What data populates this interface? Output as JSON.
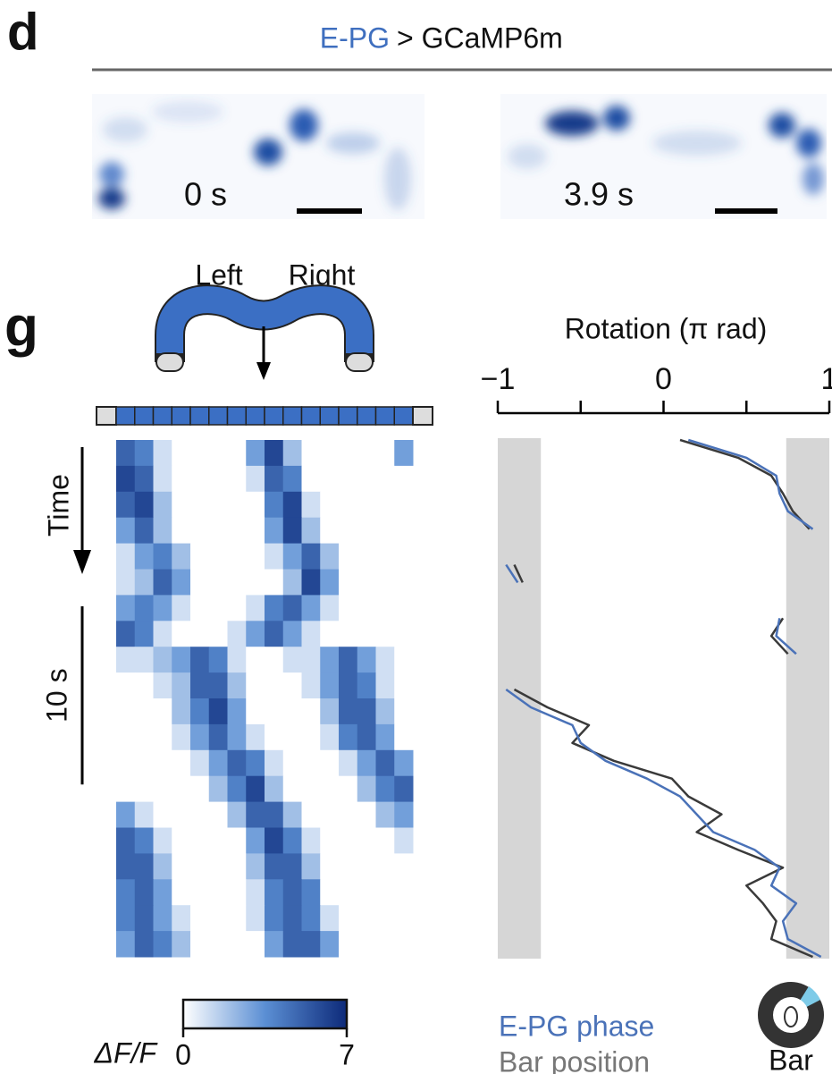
{
  "panel_d": {
    "letter": "d",
    "title_blue": "E-PG",
    "title_rest": "> GCaMP6m",
    "frames": [
      {
        "label": "0 s"
      },
      {
        "label": "3.9 s"
      }
    ]
  },
  "panel_g": {
    "letter": "g",
    "left_label": "Left",
    "right_label": "Right",
    "time_label": "Time",
    "time_scalebar": {
      "value": 10,
      "label": "10 s"
    },
    "heatmap": {
      "time_range": [
        0,
        29
      ],
      "clim": [
        0,
        7
      ],
      "colorbar_label": "ΔF/F",
      "colorbar_ticks": [
        0,
        7
      ],
      "rows": [
        [
          5,
          4,
          1,
          0,
          0,
          0,
          0,
          3,
          6,
          2,
          0,
          0,
          0,
          0,
          0,
          3
        ],
        [
          6,
          5,
          1,
          0,
          0,
          0,
          0,
          1,
          5,
          4,
          0,
          0,
          0,
          0,
          0,
          0
        ],
        [
          5,
          6,
          2,
          0,
          0,
          0,
          0,
          0,
          4,
          6,
          1,
          0,
          0,
          0,
          0,
          0
        ],
        [
          3,
          5,
          2,
          0,
          0,
          0,
          0,
          0,
          3,
          6,
          2,
          0,
          0,
          0,
          0,
          0
        ],
        [
          1,
          3,
          4,
          2,
          0,
          0,
          0,
          0,
          1,
          3,
          5,
          2,
          0,
          0,
          0,
          0
        ],
        [
          1,
          2,
          5,
          3,
          0,
          0,
          0,
          0,
          0,
          2,
          6,
          3,
          0,
          0,
          0,
          0
        ],
        [
          3,
          4,
          3,
          1,
          0,
          0,
          0,
          1,
          4,
          5,
          3,
          1,
          0,
          0,
          0,
          0
        ],
        [
          5,
          4,
          1,
          0,
          0,
          0,
          1,
          3,
          5,
          3,
          1,
          0,
          0,
          0,
          0,
          0
        ],
        [
          1,
          1,
          2,
          3,
          5,
          4,
          1,
          0,
          0,
          1,
          1,
          3,
          5,
          3,
          1,
          0
        ],
        [
          0,
          0,
          1,
          2,
          5,
          5,
          2,
          0,
          0,
          0,
          1,
          3,
          5,
          4,
          1,
          0
        ],
        [
          0,
          0,
          0,
          2,
          4,
          6,
          3,
          0,
          0,
          0,
          0,
          2,
          5,
          5,
          2,
          0
        ],
        [
          0,
          0,
          0,
          1,
          3,
          5,
          3,
          1,
          0,
          0,
          0,
          1,
          4,
          5,
          3,
          0
        ],
        [
          0,
          0,
          0,
          0,
          1,
          3,
          5,
          4,
          1,
          0,
          0,
          0,
          1,
          3,
          5,
          3
        ],
        [
          0,
          0,
          0,
          0,
          0,
          2,
          4,
          6,
          2,
          0,
          0,
          0,
          0,
          2,
          4,
          5
        ],
        [
          3,
          1,
          0,
          0,
          0,
          0,
          2,
          5,
          5,
          2,
          0,
          0,
          0,
          0,
          2,
          3
        ],
        [
          5,
          4,
          1,
          0,
          0,
          0,
          0,
          3,
          6,
          4,
          1,
          0,
          0,
          0,
          0,
          1
        ],
        [
          5,
          5,
          2,
          0,
          0,
          0,
          0,
          2,
          5,
          5,
          2,
          0,
          0,
          0,
          0,
          0
        ],
        [
          4,
          5,
          3,
          0,
          0,
          0,
          0,
          1,
          4,
          5,
          4,
          0,
          0,
          0,
          0,
          0
        ],
        [
          4,
          5,
          3,
          1,
          0,
          0,
          0,
          1,
          4,
          5,
          4,
          1,
          0,
          0,
          0,
          0
        ],
        [
          3,
          5,
          4,
          2,
          0,
          0,
          0,
          0,
          3,
          5,
          5,
          3,
          0,
          0,
          0,
          0
        ]
      ]
    },
    "rotation": {
      "xlabel": "Rotation (π rad)",
      "xlim": [
        -1,
        1
      ],
      "xticks": [
        {
          "value": -1,
          "label": "−1"
        },
        0,
        1
      ],
      "xminorticks": [
        -0.5,
        0.5
      ],
      "occluded_ranges": [
        [
          -1,
          -0.74
        ],
        [
          0.74,
          1
        ]
      ],
      "time": [
        0,
        1,
        2,
        3,
        4,
        5,
        6,
        7,
        8,
        9,
        10,
        11,
        12,
        13,
        14,
        15,
        16,
        17,
        18,
        19,
        20,
        21,
        22,
        23,
        24,
        25,
        26,
        27,
        28,
        29
      ],
      "series": [
        {
          "name": "E-PG phase",
          "color": "#4a72b8",
          "values": [
            0.15,
            0.5,
            0.68,
            0.7,
            0.75,
            0.9,
            null,
            -0.95,
            -0.88,
            null,
            0.7,
            0.68,
            0.8,
            null,
            -0.95,
            -0.8,
            -0.55,
            -0.5,
            -0.35,
            -0.1,
            0.1,
            0.2,
            0.3,
            0.55,
            0.7,
            0.65,
            0.8,
            0.72,
            0.75,
            0.95
          ]
        },
        {
          "name": "Bar position",
          "color": "#3a3a3a",
          "values": [
            0.1,
            0.45,
            0.65,
            0.72,
            0.78,
            0.88,
            null,
            -0.9,
            -0.85,
            null,
            0.72,
            0.65,
            0.75,
            null,
            -0.9,
            -0.7,
            -0.45,
            -0.55,
            -0.3,
            0.05,
            0.15,
            0.35,
            0.2,
            0.45,
            0.72,
            0.5,
            0.6,
            0.68,
            0.65,
            0.9
          ]
        }
      ],
      "legend_colors": [
        "#4a72b8",
        "#777777"
      ],
      "icon_label": "Bar"
    }
  }
}
